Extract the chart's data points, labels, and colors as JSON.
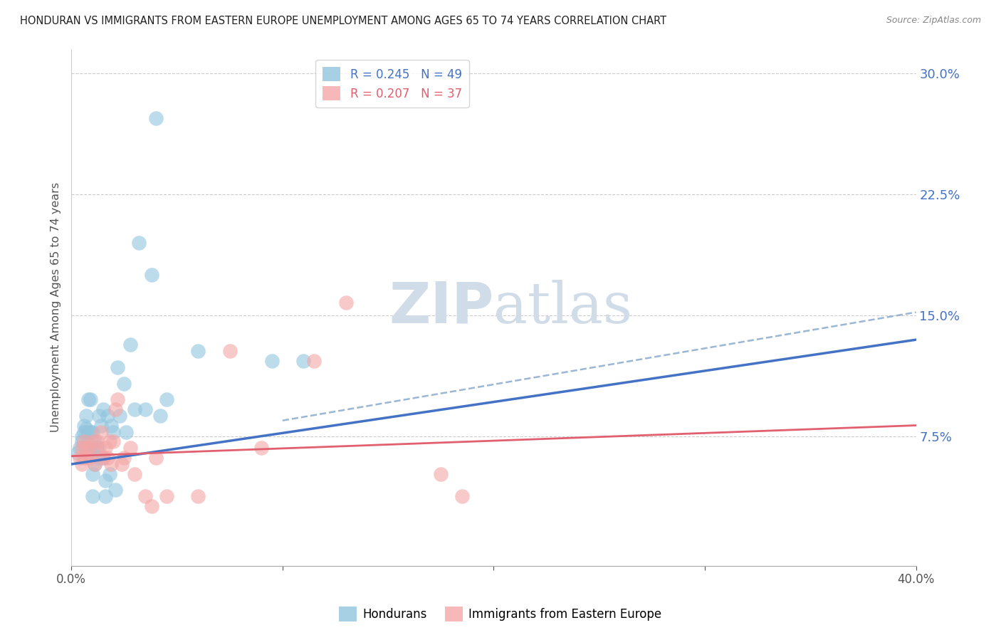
{
  "title": "HONDURAN VS IMMIGRANTS FROM EASTERN EUROPE UNEMPLOYMENT AMONG AGES 65 TO 74 YEARS CORRELATION CHART",
  "source": "Source: ZipAtlas.com",
  "ylabel": "Unemployment Among Ages 65 to 74 years",
  "xlim": [
    0.0,
    0.4
  ],
  "ylim": [
    -0.005,
    0.315
  ],
  "ytick_vals": [
    0.0,
    0.075,
    0.15,
    0.225,
    0.3
  ],
  "ytick_labels": [
    "",
    "7.5%",
    "15.0%",
    "22.5%",
    "30.0%"
  ],
  "xtick_vals": [
    0.0,
    0.1,
    0.2,
    0.3,
    0.4
  ],
  "xtick_labels": [
    "0.0%",
    "",
    "",
    "",
    "40.0%"
  ],
  "legend1_label": "R = 0.245   N = 49",
  "legend2_label": "R = 0.207   N = 37",
  "series1_color": "#92C5DE",
  "series2_color": "#F4A6A6",
  "trendline1_color": "#4472C4",
  "trendline2_color": "#E06070",
  "trendline1_dash_color": "#8AABCC",
  "background_color": "#ffffff",
  "grid_color": "#cccccc",
  "title_color": "#222222",
  "axis_label_color": "#555555",
  "right_tick_color": "#4472c4",
  "watermark_color": "#d0dce8",
  "series1_name": "Hondurans",
  "series2_name": "Immigrants from Eastern Europe",
  "honduran_x": [
    0.003,
    0.004,
    0.005,
    0.005,
    0.006,
    0.006,
    0.007,
    0.007,
    0.007,
    0.008,
    0.008,
    0.008,
    0.009,
    0.009,
    0.009,
    0.01,
    0.01,
    0.01,
    0.011,
    0.011,
    0.012,
    0.012,
    0.013,
    0.013,
    0.014,
    0.015,
    0.015,
    0.016,
    0.016,
    0.017,
    0.018,
    0.019,
    0.02,
    0.021,
    0.022,
    0.023,
    0.025,
    0.026,
    0.028,
    0.03,
    0.032,
    0.035,
    0.038,
    0.04,
    0.042,
    0.045,
    0.06,
    0.095,
    0.11
  ],
  "honduran_y": [
    0.065,
    0.068,
    0.075,
    0.072,
    0.078,
    0.082,
    0.068,
    0.08,
    0.088,
    0.065,
    0.098,
    0.078,
    0.098,
    0.068,
    0.078,
    0.078,
    0.038,
    0.052,
    0.058,
    0.072,
    0.068,
    0.068,
    0.062,
    0.088,
    0.082,
    0.092,
    0.062,
    0.038,
    0.048,
    0.088,
    0.052,
    0.082,
    0.078,
    0.042,
    0.118,
    0.088,
    0.108,
    0.078,
    0.132,
    0.092,
    0.195,
    0.092,
    0.175,
    0.272,
    0.088,
    0.098,
    0.128,
    0.122,
    0.122
  ],
  "eastern_x": [
    0.004,
    0.005,
    0.005,
    0.006,
    0.006,
    0.007,
    0.007,
    0.008,
    0.009,
    0.01,
    0.011,
    0.012,
    0.013,
    0.014,
    0.015,
    0.016,
    0.017,
    0.018,
    0.019,
    0.02,
    0.021,
    0.022,
    0.024,
    0.025,
    0.028,
    0.03,
    0.035,
    0.038,
    0.04,
    0.045,
    0.06,
    0.075,
    0.09,
    0.115,
    0.13,
    0.175,
    0.185
  ],
  "eastern_y": [
    0.062,
    0.058,
    0.068,
    0.062,
    0.072,
    0.068,
    0.062,
    0.068,
    0.062,
    0.072,
    0.058,
    0.072,
    0.068,
    0.078,
    0.062,
    0.068,
    0.062,
    0.072,
    0.058,
    0.072,
    0.092,
    0.098,
    0.058,
    0.062,
    0.068,
    0.052,
    0.038,
    0.032,
    0.062,
    0.038,
    0.038,
    0.128,
    0.068,
    0.122,
    0.158,
    0.052,
    0.038
  ],
  "trendline1_x0": 0.0,
  "trendline1_y0": 0.058,
  "trendline1_x1": 0.4,
  "trendline1_y1": 0.135,
  "trendline1_dash_x0": 0.1,
  "trendline1_dash_y0": 0.085,
  "trendline1_dash_x1": 0.4,
  "trendline1_dash_y1": 0.152,
  "trendline2_x0": 0.0,
  "trendline2_y0": 0.063,
  "trendline2_x1": 0.4,
  "trendline2_y1": 0.082
}
